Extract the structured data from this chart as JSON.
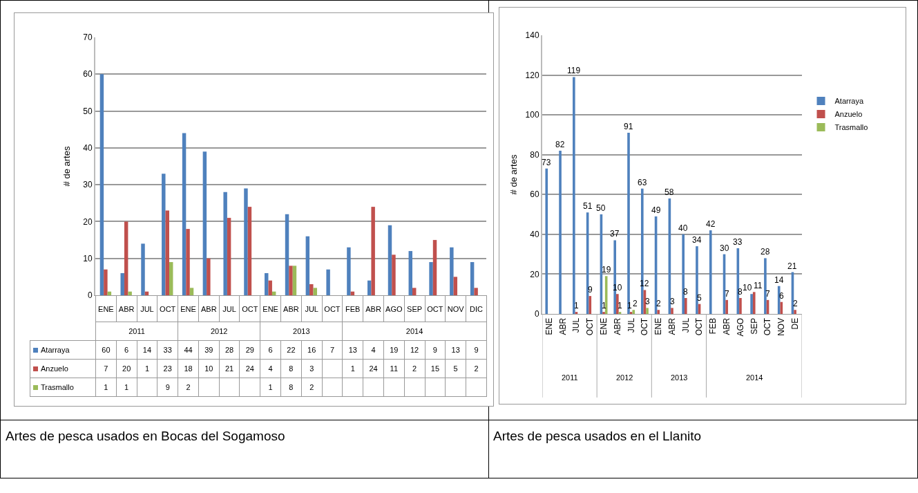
{
  "chart_data": [
    {
      "type": "bar",
      "ylabel": "# de artes",
      "categories": [
        "ENE",
        "ABR",
        "JUL",
        "OCT",
        "ENE",
        "ABR",
        "JUL",
        "OCT",
        "ENE",
        "ABR",
        "JUL",
        "OCT",
        "FEB",
        "ABR",
        "AGO",
        "SEP",
        "OCT",
        "NOV",
        "DIC"
      ],
      "series": [
        {
          "name": "Atarraya",
          "color": "#4f81bd",
          "values": [
            60,
            6,
            14,
            33,
            44,
            39,
            28,
            29,
            6,
            22,
            16,
            7,
            13,
            4,
            19,
            12,
            9,
            13,
            9
          ]
        },
        {
          "name": "Anzuelo",
          "color": "#c0504d",
          "values": [
            7,
            20,
            1,
            23,
            18,
            10,
            21,
            24,
            4,
            8,
            3,
            null,
            1,
            24,
            11,
            2,
            15,
            5,
            2
          ]
        },
        {
          "name": "Trasmallo",
          "color": "#9bbb59",
          "values": [
            1,
            1,
            null,
            9,
            2,
            null,
            null,
            null,
            1,
            8,
            2,
            null,
            null,
            null,
            null,
            null,
            null,
            null,
            null
          ]
        }
      ],
      "ylim": [
        0,
        70
      ],
      "yticks": [
        0,
        10,
        20,
        30,
        40,
        50,
        60,
        70
      ],
      "grid": "y",
      "tick_labels": "y",
      "data_labels": true,
      "legend": "bottom left",
      "title": "Artes de pesca usados en Bocas del Sogamoso",
      "annotations": [
        "2011",
        "2012",
        "2013",
        "2014"
      ]
    },
    {
      "type": "bar",
      "ylabel": "# de artes",
      "categories": [
        "ENE",
        "ABR",
        "JUL",
        "OCT",
        "ENE",
        "ABR",
        "JUL",
        "OCT",
        "ENE",
        "ABR",
        "JUL",
        "OCT",
        "FEB",
        "ABR",
        "AGO",
        "SEP",
        "OCT",
        "NOV",
        "DE"
      ],
      "series": [
        {
          "name": "Atarraya",
          "color": "#4f81bd",
          "values": [
            73,
            82,
            119,
            51,
            50,
            37,
            91,
            63,
            49,
            58,
            40,
            34,
            42,
            30,
            33,
            10,
            28,
            14,
            21
          ]
        },
        {
          "name": "Anzuelo",
          "color": "#c0504d",
          "values": [
            null,
            null,
            1,
            9,
            1,
            10,
            1,
            12,
            2,
            3,
            8,
            5,
            null,
            7,
            8,
            11,
            7,
            6,
            2
          ]
        },
        {
          "name": "Trasmallo",
          "color": "#9bbb59",
          "values": [
            null,
            null,
            null,
            null,
            19,
            1,
            2,
            3,
            null,
            null,
            null,
            null,
            null,
            null,
            null,
            null,
            null,
            null,
            null
          ]
        }
      ],
      "ylim": [
        0,
        140
      ],
      "yticks": [
        0,
        20,
        40,
        60,
        80,
        100,
        120,
        140
      ],
      "grid": "y",
      "legend": "right",
      "data_labels": true,
      "title": "Artes de pesca usados en el Llanito",
      "annotations": [
        "2011",
        "2012",
        "2013",
        "2014"
      ]
    }
  ]
}
